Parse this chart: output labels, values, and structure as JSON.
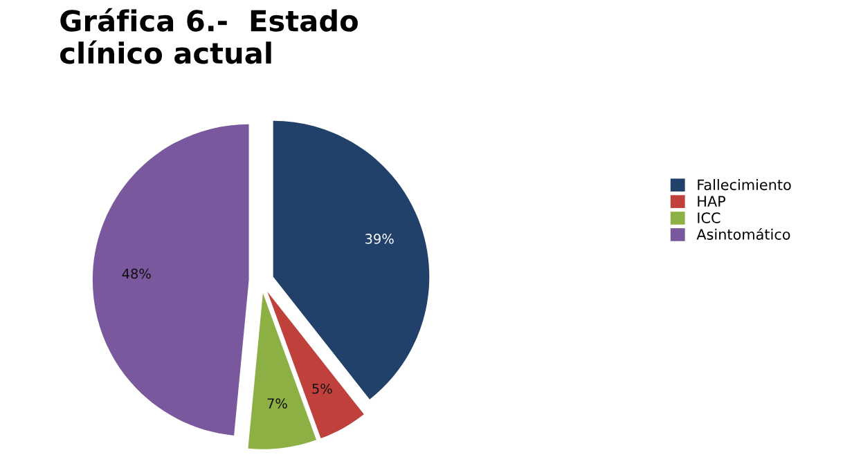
{
  "chart_data": {
    "type": "pie",
    "title": "Gráfica 6.-  Estado\nclínico actual",
    "categories": [
      "Fallecimiento",
      "HAP",
      "ICC",
      "Asintomático"
    ],
    "values": [
      39,
      5,
      7,
      48
    ],
    "value_labels": [
      "39%",
      "5%",
      "7%",
      "48%"
    ],
    "colors": [
      "#21416a",
      "#c0413b",
      "#8cb043",
      "#7a589d"
    ],
    "legend": "right"
  }
}
